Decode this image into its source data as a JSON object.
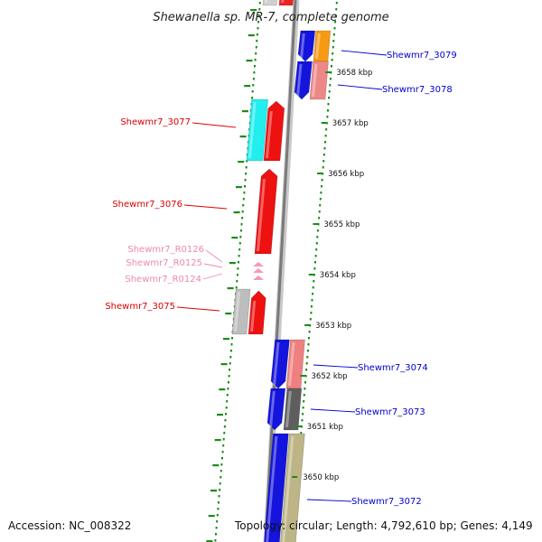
{
  "title": "Shewanella sp. MR-7, complete genome",
  "footer": {
    "accession": "Accession: NC_008322",
    "topology": "Topology: circular; Length: 4,792,610 bp; Genes: 4,149"
  },
  "colors": {
    "gene_label_red": "#dd0000",
    "gene_label_blue": "#0000cc",
    "rna_label_pink": "#ee88aa",
    "tick_green": "#1a8c1a",
    "backbone_gray": "#777777"
  },
  "kbp_ticks": [
    {
      "label": "3650 kbp"
    },
    {
      "label": "3651 kbp"
    },
    {
      "label": "3652 kbp"
    },
    {
      "label": "3653 kbp"
    },
    {
      "label": "3654 kbp"
    },
    {
      "label": "3655 kbp"
    },
    {
      "label": "3656 kbp"
    },
    {
      "label": "3657 kbp"
    },
    {
      "label": "3658 kbp"
    }
  ],
  "gene_labels": [
    {
      "name": "Shewmr7_3079",
      "kind": "blue"
    },
    {
      "name": "Shewmr7_3078",
      "kind": "blue"
    },
    {
      "name": "Shewmr7_3077",
      "kind": "red"
    },
    {
      "name": "Shewmr7_3076",
      "kind": "red"
    },
    {
      "name": "Shewmr7_R0126",
      "kind": "pink"
    },
    {
      "name": "Shewmr7_R0125",
      "kind": "pink"
    },
    {
      "name": "Shewmr7_R0124",
      "kind": "pink"
    },
    {
      "name": "Shewmr7_3075",
      "kind": "red"
    },
    {
      "name": "Shewmr7_3074",
      "kind": "blue"
    },
    {
      "name": "Shewmr7_3073",
      "kind": "blue"
    },
    {
      "name": "Shewmr7_3072",
      "kind": "blue"
    }
  ]
}
